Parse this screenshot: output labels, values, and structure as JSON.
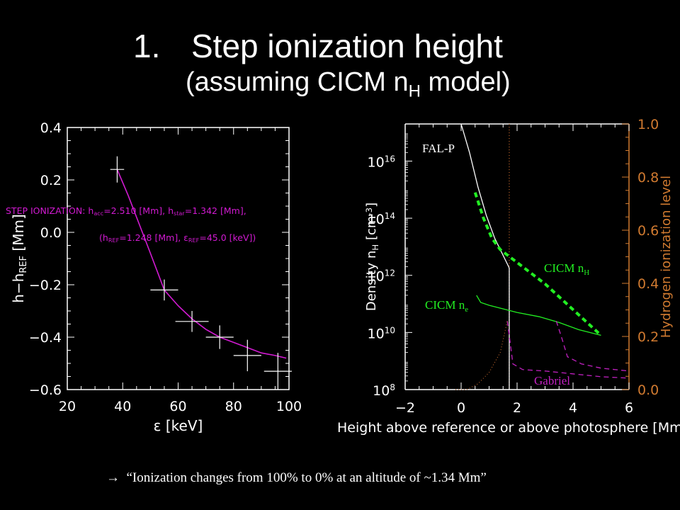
{
  "slide": {
    "title_number": "1.",
    "title": "Step ionization height",
    "subtitle_pre": "(assuming CICM n",
    "subtitle_sub": "H",
    "subtitle_post": " model)",
    "footer_arrow": "→",
    "footer": "“Ionization changes from 100% to 0% at an altitude of ~1.34 Mm”"
  },
  "chart_data": [
    {
      "type": "scatter",
      "xlabel": "ε [keV]",
      "ylabel": "h−h_REF [Mm]",
      "xlim": [
        20,
        100
      ],
      "ylim": [
        -0.6,
        0.4
      ],
      "xticks": [
        "20",
        "40",
        "60",
        "80",
        "100"
      ],
      "yticks": [
        "0.4",
        "0.2",
        "0.0",
        "−0.2",
        "−0.4",
        "−0.6"
      ],
      "annotation_line1": "STEP IONIZATION: h_acc=2.510 [Mm], h_star=1.342 [Mm],",
      "annotation_line2": "(h_REF=1.248 [Mm], ε_REF=45.0 [keV])",
      "points": [
        {
          "x": 38,
          "y": 0.24,
          "xerr": 2.5,
          "yerr": 0.05
        },
        {
          "x": 55,
          "y": -0.22,
          "xerr": 5,
          "yerr": 0.04
        },
        {
          "x": 65,
          "y": -0.34,
          "xerr": 6,
          "yerr": 0.04
        },
        {
          "x": 75,
          "y": -0.4,
          "xerr": 5,
          "yerr": 0.045
        },
        {
          "x": 85,
          "y": -0.47,
          "xerr": 5,
          "yerr": 0.06
        },
        {
          "x": 96,
          "y": -0.53,
          "xerr": 5,
          "yerr": 0.07
        }
      ],
      "fit": {
        "x": [
          38,
          42,
          46,
          50,
          55,
          60,
          65,
          70,
          75,
          80,
          85,
          90,
          95,
          99
        ],
        "y": [
          0.24,
          0.14,
          0.03,
          -0.08,
          -0.22,
          -0.28,
          -0.33,
          -0.37,
          -0.4,
          -0.42,
          -0.44,
          -0.46,
          -0.47,
          -0.48
        ]
      },
      "colors": {
        "axes": "#ffffff",
        "fit": "#d21ad2",
        "points": "#ffffff",
        "annotation": "#d21ad2"
      }
    },
    {
      "type": "line",
      "xlabel": "Height above reference or above photosphere [Mm]",
      "ylabel": "Density n_H [cm^-3]",
      "y2label": "Hydrogen ionization level",
      "xlim": [
        -2,
        6
      ],
      "ylim_log10": [
        8,
        17.3
      ],
      "y2lim": [
        0,
        1
      ],
      "xticks": [
        "−2",
        "0",
        "2",
        "4",
        "6"
      ],
      "yticks": [
        {
          "base": "10",
          "exp": "16",
          "value": 16
        },
        {
          "base": "10",
          "exp": "14",
          "value": 14
        },
        {
          "base": "10",
          "exp": "12",
          "value": 12
        },
        {
          "base": "10",
          "exp": "10",
          "value": 10
        },
        {
          "base": "10",
          "exp": "8",
          "value": 8
        }
      ],
      "y2ticks": [
        "1.0",
        "0.8",
        "0.6",
        "0.4",
        "0.2",
        "0.0"
      ],
      "series": [
        {
          "name": "FAL-P",
          "color": "#ffffff",
          "style": "solid",
          "x": [
            0.0,
            0.3,
            0.6,
            0.9,
            1.2,
            1.5,
            1.7,
            1.72,
            1.72
          ],
          "y": [
            17.3,
            16.3,
            15.1,
            14.1,
            13.3,
            12.7,
            12.3,
            12.25,
            8.0
          ]
        },
        {
          "name": "CICM n",
          "sub": "H",
          "color": "#22ee22",
          "style": "dashed-thick",
          "x": [
            0.5,
            0.8,
            1.1,
            1.4,
            2.0,
            3.0,
            4.0,
            5.0
          ],
          "y": [
            14.9,
            14.0,
            13.3,
            12.9,
            12.45,
            11.7,
            10.8,
            9.9
          ]
        },
        {
          "name": "CICM n",
          "sub": "e",
          "color": "#22ee22",
          "style": "solid",
          "x": [
            0.55,
            0.7,
            1.0,
            2.0,
            2.8,
            3.5,
            4.2,
            5.0
          ],
          "y": [
            11.3,
            11.05,
            10.95,
            10.7,
            10.55,
            10.35,
            10.1,
            9.9
          ]
        },
        {
          "name": "Gabriel",
          "color": "#c020c0",
          "style": "dashed",
          "x": [
            1.65,
            1.72,
            1.85,
            2.2,
            3.0,
            4.0,
            5.0,
            6.0
          ],
          "y": [
            10.4,
            9.9,
            8.9,
            8.7,
            8.65,
            8.55,
            8.45,
            8.4
          ]
        },
        {
          "name": "",
          "color": "#c020c0",
          "style": "dashed",
          "x": [
            3.4,
            3.6,
            3.8,
            4.3,
            5.0,
            6.0
          ],
          "y": [
            10.4,
            9.8,
            9.15,
            8.9,
            8.75,
            8.65
          ]
        },
        {
          "name": "",
          "color": "#b4602a",
          "style": "dotted",
          "x": [
            -0.2,
            0.2,
            0.6,
            1.0,
            1.4,
            1.65
          ],
          "y": [
            8.0,
            8.0,
            8.2,
            8.6,
            9.3,
            10.4
          ]
        }
      ],
      "vertical_marker": {
        "x": 1.72,
        "color": "#b4602a",
        "style": "dotted"
      },
      "colors": {
        "axes": "#ffffff",
        "right_axis": "#d07a30"
      }
    }
  ]
}
